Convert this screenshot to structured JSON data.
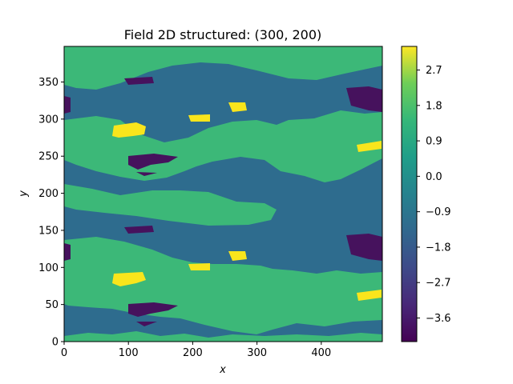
{
  "chart_data": {
    "type": "heatmap",
    "title": "Field 2D structured: (300, 200)",
    "xlabel": "x",
    "ylabel": "y",
    "xlim": [
      0,
      495
    ],
    "ylim": [
      0,
      398
    ],
    "x_ticks": [
      "0",
      "100",
      "200",
      "300",
      "400"
    ],
    "y_ticks": [
      "0",
      "50",
      "100",
      "150",
      "200",
      "250",
      "300",
      "350"
    ],
    "colorbar": {
      "colormap": "viridis",
      "range": [
        -4.2,
        3.3
      ],
      "ticks": [
        "2.7",
        "1.8",
        "0.9",
        "0.0",
        "−0.9",
        "−1.8",
        "−2.7",
        "−3.6"
      ]
    },
    "field_levels": [
      {
        "name": "level-high-green",
        "value": 1.2,
        "color": "#3cb878"
      },
      {
        "name": "level-mid-blue",
        "value": -1.5,
        "color": "#2e6c8e"
      },
      {
        "name": "level-max-yellow",
        "value": 3.1,
        "color": "#f9e51c"
      },
      {
        "name": "level-min-purple",
        "value": -3.9,
        "color": "#46125d"
      }
    ]
  }
}
